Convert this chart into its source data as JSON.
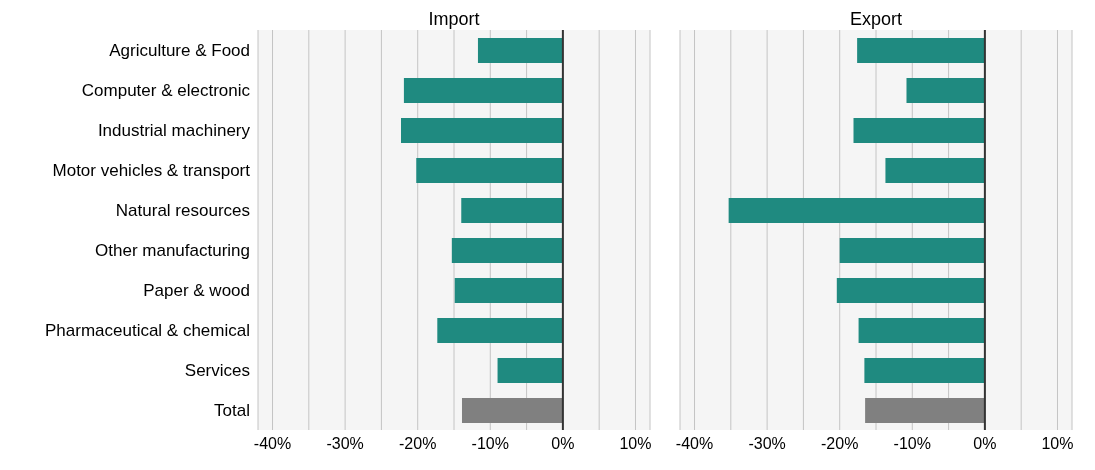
{
  "chart_data": [
    {
      "type": "bar",
      "orientation": "horizontal",
      "title": "Import",
      "categories": [
        "Agriculture & Food",
        "Computer & electronic",
        "Industrial machinery",
        "Motor vehicles & transport",
        "Natural resources",
        "Other manufacturing",
        "Paper & wood",
        "Pharmaceutical & chemical",
        "Services",
        "Total"
      ],
      "values": [
        -11.7,
        -21.9,
        -22.3,
        -20.2,
        -14.0,
        -15.3,
        -14.9,
        -17.3,
        -9.0,
        -13.9
      ],
      "colors": [
        "#1f8a80",
        "#1f8a80",
        "#1f8a80",
        "#1f8a80",
        "#1f8a80",
        "#1f8a80",
        "#1f8a80",
        "#1f8a80",
        "#1f8a80",
        "#808080"
      ],
      "xlim": [
        -42,
        12
      ],
      "xticks": [
        {
          "value": -40,
          "label": "-40%"
        },
        {
          "value": -35,
          "label": null
        },
        {
          "value": -30,
          "label": "-30%"
        },
        {
          "value": -25,
          "label": null
        },
        {
          "value": -20,
          "label": "-20%"
        },
        {
          "value": -15,
          "label": null
        },
        {
          "value": -10,
          "label": "-10%"
        },
        {
          "value": -5,
          "label": null
        },
        {
          "value": 0,
          "label": "0%"
        },
        {
          "value": 5,
          "label": null
        },
        {
          "value": 10,
          "label": "10%"
        }
      ],
      "ref_lines": [
        {
          "axis": "x",
          "value": 0,
          "color": "#333333"
        }
      ],
      "grid": "x",
      "legend": false
    },
    {
      "type": "bar",
      "orientation": "horizontal",
      "title": "Export",
      "categories": [
        null,
        null,
        null,
        null,
        null,
        null,
        null,
        null,
        null,
        null
      ],
      "values": [
        -17.6,
        -10.8,
        -18.1,
        -13.7,
        -35.3,
        -20.0,
        -20.4,
        -17.4,
        -16.6,
        -16.5
      ],
      "colors": [
        "#1f8a80",
        "#1f8a80",
        "#1f8a80",
        "#1f8a80",
        "#1f8a80",
        "#1f8a80",
        "#1f8a80",
        "#1f8a80",
        "#1f8a80",
        "#808080"
      ],
      "xlim": [
        -42,
        12
      ],
      "xticks": [
        {
          "value": -40,
          "label": "-40%"
        },
        {
          "value": -35,
          "label": null
        },
        {
          "value": -30,
          "label": "-30%"
        },
        {
          "value": -25,
          "label": null
        },
        {
          "value": -20,
          "label": "-20%"
        },
        {
          "value": -15,
          "label": null
        },
        {
          "value": -10,
          "label": "-10%"
        },
        {
          "value": -5,
          "label": null
        },
        {
          "value": 0,
          "label": "0%"
        },
        {
          "value": 5,
          "label": null
        },
        {
          "value": 10,
          "label": "10%"
        }
      ],
      "ref_lines": [
        {
          "axis": "x",
          "value": 0,
          "color": "#333333"
        }
      ],
      "grid": "x",
      "legend": false,
      "tick_labels": "x"
    }
  ]
}
